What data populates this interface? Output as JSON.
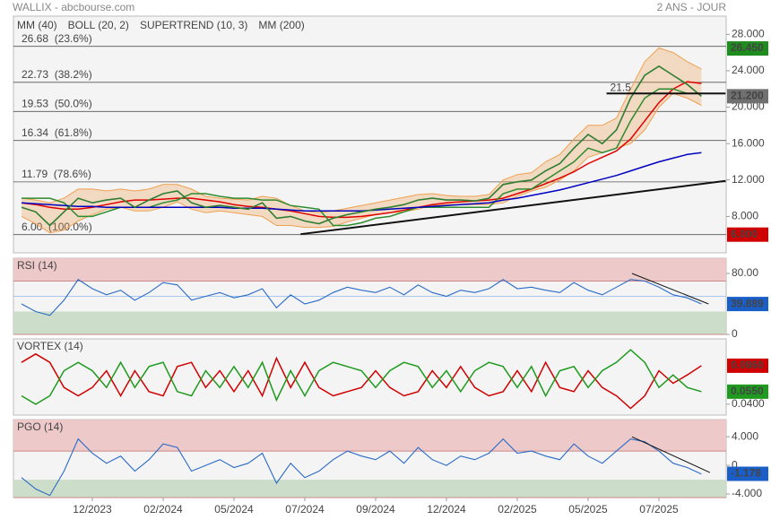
{
  "header": {
    "title": "WALLIX - abcbourse.com",
    "period": "2 ANS - JOUR"
  },
  "chart_data": [
    {
      "type": "line",
      "color": "#2e7d32",
      "values": [
        9.0,
        8.5,
        7.0,
        8.5,
        10.0,
        9.5,
        9.8,
        10.0,
        9.0,
        9.8,
        10.5,
        10.8,
        9.5,
        9.0,
        9.2,
        9.0,
        8.8,
        9.5,
        7.8,
        8.0,
        7.5,
        7.2,
        7.8,
        8.2,
        8.5,
        8.8,
        9.0,
        9.3,
        9.8,
        10.0,
        9.8,
        9.8,
        9.7,
        10.0,
        11.5,
        11.8,
        12.0,
        13.0,
        13.8,
        15.5,
        17.0,
        16.0,
        17.5,
        21.0,
        23.5,
        24.5,
        23.5,
        22.5,
        21.2
      ],
      "series": [
        {
          "name": "MM (40)",
          "color": "#e00000",
          "values": [
            9.5,
            9.3,
            9.0,
            8.8,
            8.8,
            9.0,
            9.3,
            9.6,
            9.8,
            9.8,
            9.9,
            10.0,
            10.0,
            9.8,
            9.6,
            9.3,
            9.1,
            9.0,
            8.8,
            8.6,
            8.3,
            8.0,
            7.9,
            7.9,
            8.0,
            8.2,
            8.4,
            8.7,
            9.0,
            9.3,
            9.5,
            9.6,
            9.7,
            9.8,
            10.0,
            10.5,
            11.0,
            11.6,
            12.2,
            12.9,
            13.8,
            14.5,
            15.2,
            16.5,
            18.5,
            20.5,
            22.0,
            22.8,
            22.6
          ]
        },
        {
          "name": "BOLL (20, 2)",
          "color": "#f0a050",
          "values": [
            10,
            9.8,
            9.5,
            10,
            11,
            11,
            10.8,
            11,
            10.8,
            11,
            11.5,
            11.5,
            11,
            10.2,
            10,
            9.9,
            9.8,
            10.2,
            10,
            9.2,
            8.6,
            8.4,
            8.6,
            8.9,
            9.2,
            9.5,
            9.8,
            10.1,
            10.4,
            10.5,
            10.3,
            10.2,
            10.2,
            10.4,
            12,
            12.6,
            12.8,
            14,
            14.8,
            16.5,
            18,
            18,
            18.8,
            22,
            25,
            26.5,
            26,
            25,
            24.2
          ],
          "lower": [
            8,
            7.2,
            6.2,
            6.5,
            7.5,
            8.2,
            8.8,
            9,
            8.6,
            8.6,
            9,
            9.6,
            8.8,
            8.4,
            8.6,
            8.4,
            8.2,
            8,
            7,
            7,
            6.8,
            6.8,
            6.9,
            7.4,
            7.8,
            8.2,
            8.4,
            8.5,
            8.8,
            9.2,
            9.3,
            9.3,
            9.3,
            9.3,
            9.5,
            10.2,
            10.8,
            11.2,
            12,
            13,
            14.5,
            15,
            15.5,
            16,
            17.5,
            20,
            21.5,
            21,
            20.2
          ]
        },
        {
          "name": "SUPERTREND (10, 3)",
          "color": "#b00000",
          "line_color": "#2e8b2e",
          "values": [
            10,
            10,
            10,
            9.5,
            8,
            8,
            8.5,
            9,
            9,
            9,
            9.5,
            9.8,
            10.5,
            10.5,
            10.2,
            10,
            10,
            9.8,
            9.8,
            9.2,
            9,
            8.8,
            7,
            7,
            7.3,
            7.8,
            8,
            8.5,
            9,
            9,
            9,
            9,
            9,
            9,
            10.5,
            11,
            11,
            12,
            13,
            14,
            15.5,
            15,
            15.5,
            18.5,
            21,
            22,
            22,
            21.5,
            21.5
          ]
        },
        {
          "name": "MM (200)",
          "color": "#0000c0",
          "values": [
            9.5,
            9.4,
            9.3,
            9.2,
            9.1,
            9.1,
            9.0,
            9.0,
            9.0,
            9.0,
            9.0,
            9.0,
            9.0,
            9.0,
            9.0,
            8.9,
            8.9,
            8.9,
            8.8,
            8.7,
            8.6,
            8.6,
            8.6,
            8.6,
            8.6,
            8.7,
            8.8,
            8.9,
            9.0,
            9.1,
            9.2,
            9.3,
            9.4,
            9.5,
            9.8,
            10.0,
            10.3,
            10.6,
            10.9,
            11.3,
            11.7,
            12.1,
            12.5,
            13.0,
            13.5,
            14.0,
            14.4,
            14.8,
            15.0
          ]
        }
      ],
      "ylim": [
        4,
        30
      ],
      "yticks": [
        {
          "value": 28,
          "label": "28.000"
        },
        {
          "value": 24,
          "label": "24.000"
        },
        {
          "value": 20,
          "label": "20.000"
        },
        {
          "value": 16,
          "label": "16.000"
        },
        {
          "value": 12,
          "label": "12.000"
        },
        {
          "value": 8,
          "label": "8.000"
        }
      ],
      "fib_levels": [
        {
          "value": 26.68,
          "label": "26.68  (23.6%)"
        },
        {
          "value": 22.73,
          "label": "22.73  (38.2%)"
        },
        {
          "value": 19.53,
          "label": "19.53  (50.0%)"
        },
        {
          "value": 16.34,
          "label": "16.34  (61.8%)"
        },
        {
          "value": 11.79,
          "label": "11.79  (78.6%)"
        },
        {
          "value": 6.0,
          "label": "6.00  (100.0%)"
        }
      ],
      "price_tags": [
        {
          "value": 26.45,
          "label": "26.450",
          "color": "#1e8c1e"
        },
        {
          "value": 21.2,
          "label": "21.200",
          "color": "#707070"
        },
        {
          "value": 6.0,
          "label": "6.000",
          "color": "#d00000"
        }
      ],
      "trendlines": [
        {
          "x": [
            19.7,
            49.7
          ],
          "y": [
            6.05,
            11.9
          ]
        },
        {
          "x": [
            41.3,
            49.7
          ],
          "y": [
            21.5,
            21.5
          ],
          "label": "21.5"
        }
      ]
    },
    {
      "type": "line",
      "title": "RSI (14)",
      "title_color": "#1a2e8c",
      "color": "#2a6ac8",
      "values": [
        40,
        30,
        25,
        45,
        72,
        60,
        52,
        58,
        45,
        55,
        68,
        65,
        45,
        50,
        55,
        48,
        52,
        60,
        35,
        52,
        40,
        45,
        55,
        62,
        58,
        55,
        62,
        52,
        65,
        55,
        50,
        58,
        55,
        60,
        72,
        60,
        62,
        58,
        55,
        68,
        58,
        52,
        62,
        72,
        70,
        62,
        52,
        48,
        40
      ],
      "ylim": [
        0,
        100
      ],
      "yticks": [
        {
          "value": 80,
          "label": "80.00"
        },
        0
      ],
      "zones": [
        {
          "from": 70,
          "to": 100,
          "color": "#ecc4c4"
        },
        {
          "from": 0,
          "to": 30,
          "color": "#c8dcc4"
        }
      ],
      "hline": 50,
      "hline_color": "#a8c8f0",
      "price_tags": [
        {
          "value": 39.889,
          "label": "39.889",
          "color": "#1a5ec8"
        }
      ],
      "trendlines": [
        {
          "x": [
            43.1,
            48.5
          ],
          "y": [
            80,
            40
          ]
        }
      ]
    },
    {
      "type": "line",
      "title": "VORTEX (14)",
      "title_color": "#0b6b0b",
      "series": [
        {
          "color": "#d00000",
          "values": [
            0.09,
            0.1,
            0.09,
            0.06,
            0.05,
            0.06,
            0.08,
            0.05,
            0.08,
            0.055,
            0.05,
            0.085,
            0.09,
            0.06,
            0.08,
            0.055,
            0.08,
            0.05,
            0.095,
            0.06,
            0.09,
            0.06,
            0.05,
            0.055,
            0.06,
            0.08,
            0.06,
            0.05,
            0.055,
            0.08,
            0.06,
            0.085,
            0.06,
            0.05,
            0.055,
            0.08,
            0.055,
            0.09,
            0.06,
            0.055,
            0.08,
            0.06,
            0.05,
            0.035,
            0.05,
            0.08,
            0.065,
            0.075,
            0.086
          ]
        },
        {
          "color": "#1e9a1e",
          "values": [
            0.05,
            0.04,
            0.05,
            0.08,
            0.09,
            0.08,
            0.06,
            0.09,
            0.06,
            0.085,
            0.09,
            0.055,
            0.05,
            0.08,
            0.06,
            0.085,
            0.06,
            0.09,
            0.045,
            0.08,
            0.05,
            0.08,
            0.09,
            0.085,
            0.08,
            0.06,
            0.08,
            0.09,
            0.085,
            0.06,
            0.08,
            0.055,
            0.08,
            0.09,
            0.085,
            0.06,
            0.085,
            0.05,
            0.08,
            0.085,
            0.06,
            0.08,
            0.09,
            0.105,
            0.09,
            0.06,
            0.075,
            0.06,
            0.055
          ]
        }
      ],
      "ylim": [
        0.027,
        0.118
      ],
      "yticks": [
        {
          "value": 0.04,
          "label": "0.0400"
        }
      ],
      "price_tags": [
        {
          "value": 0.086,
          "label": "0.0860",
          "color": "#d00000"
        },
        {
          "value": 0.055,
          "label": "0.0550",
          "color": "#1e9a1e"
        }
      ]
    },
    {
      "type": "line",
      "title": "PGO (14)",
      "title_color": "#1a2e8c",
      "color": "#2a6ac8",
      "values": [
        -1.7,
        -3.3,
        -4.2,
        -0.8,
        3.7,
        1.7,
        0.3,
        1.3,
        -0.8,
        0.8,
        3.0,
        2.5,
        -0.8,
        0,
        0.8,
        -0.3,
        0.3,
        1.7,
        -2.5,
        0.3,
        -1.7,
        -0.8,
        0.8,
        2.0,
        1.3,
        0.8,
        2.0,
        0.3,
        2.5,
        0.8,
        0,
        1.3,
        0.8,
        1.7,
        3.7,
        1.7,
        2.0,
        1.3,
        0.8,
        3.0,
        1.3,
        0.3,
        2.0,
        3.7,
        3.3,
        2.0,
        0.3,
        -0.3,
        -1.2
      ],
      "ylim": [
        -4.5,
        6.4
      ],
      "yticks": [
        {
          "value": 4,
          "label": "4.000"
        },
        0,
        {
          "value": -4,
          "label": "-4.000"
        }
      ],
      "zones": [
        {
          "from": 2,
          "to": 6.4,
          "color": "#ecc4c4"
        },
        {
          "from": -4.5,
          "to": -2,
          "color": "#c8dcc4"
        }
      ],
      "price_tags": [
        {
          "value": -1.178,
          "label": "-1.178",
          "color": "#1a5ec8"
        }
      ],
      "trendlines": [
        {
          "x": [
            43.1,
            48.6
          ],
          "y": [
            4.0,
            -1.0
          ]
        }
      ],
      "categories": [
        null,
        null,
        null,
        null,
        null,
        "12/2023",
        null,
        null,
        null,
        null,
        "02/2024",
        null,
        null,
        null,
        null,
        "05/2024",
        null,
        null,
        null,
        null,
        "07/2024",
        null,
        null,
        null,
        null,
        "09/2024",
        null,
        null,
        null,
        null,
        "12/2024",
        null,
        null,
        null,
        null,
        "02/2025",
        null,
        null,
        null,
        null,
        "05/2025",
        null,
        null,
        null,
        null,
        "07/2025",
        null,
        null,
        null
      ]
    }
  ]
}
